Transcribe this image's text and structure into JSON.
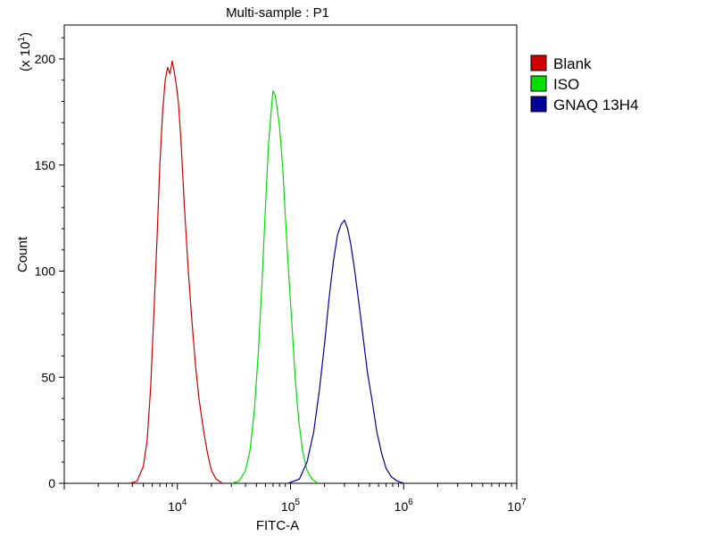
{
  "chart_data": {
    "type": "line",
    "title": "Multi-sample : P1",
    "xlabel": "FITC-A",
    "ylabel": "Count",
    "y_multiplier_label": {
      "base": "(x 10",
      "exp": "1",
      "close": ")"
    },
    "xscale": "log",
    "xlim": [
      1000,
      10000000
    ],
    "ylim": [
      0,
      216
    ],
    "x_tick_labels": [
      {
        "value": 10000,
        "base": "10",
        "exp": "4"
      },
      {
        "value": 100000,
        "base": "10",
        "exp": "5"
      },
      {
        "value": 1000000,
        "base": "10",
        "exp": "6"
      },
      {
        "value": 10000000,
        "base": "10",
        "exp": "7"
      }
    ],
    "y_ticks": [
      0,
      50,
      100,
      150,
      200
    ],
    "grid": false,
    "legend_position": "right",
    "series": [
      {
        "name": "Blank",
        "color": "#cc0000",
        "points": [
          [
            3800,
            0
          ],
          [
            4400,
            1
          ],
          [
            5000,
            8
          ],
          [
            5400,
            20
          ],
          [
            5800,
            45
          ],
          [
            6200,
            80
          ],
          [
            6600,
            115
          ],
          [
            7000,
            150
          ],
          [
            7400,
            175
          ],
          [
            7800,
            190
          ],
          [
            8200,
            196
          ],
          [
            8600,
            193
          ],
          [
            9000,
            199
          ],
          [
            9300,
            195
          ],
          [
            9700,
            189
          ],
          [
            10200,
            180
          ],
          [
            10800,
            160
          ],
          [
            11500,
            132
          ],
          [
            12500,
            100
          ],
          [
            13500,
            75
          ],
          [
            14500,
            55
          ],
          [
            15500,
            40
          ],
          [
            17000,
            25
          ],
          [
            18500,
            14
          ],
          [
            20000,
            6
          ],
          [
            22000,
            2
          ],
          [
            25000,
            0
          ]
        ]
      },
      {
        "name": "ISO",
        "color": "#00dd00",
        "points": [
          [
            30000,
            0
          ],
          [
            35000,
            1
          ],
          [
            40000,
            6
          ],
          [
            44000,
            16
          ],
          [
            48000,
            35
          ],
          [
            52000,
            62
          ],
          [
            56000,
            95
          ],
          [
            60000,
            130
          ],
          [
            64000,
            160
          ],
          [
            68000,
            178
          ],
          [
            70000,
            185
          ],
          [
            73000,
            183
          ],
          [
            76000,
            177
          ],
          [
            80000,
            168
          ],
          [
            85000,
            150
          ],
          [
            90000,
            126
          ],
          [
            96000,
            100
          ],
          [
            103000,
            75
          ],
          [
            110000,
            50
          ],
          [
            118000,
            30
          ],
          [
            128000,
            15
          ],
          [
            140000,
            6
          ],
          [
            155000,
            2
          ],
          [
            175000,
            0
          ]
        ]
      },
      {
        "name": "GNAQ  13H4",
        "color": "#000099",
        "points": [
          [
            95000,
            0
          ],
          [
            120000,
            2
          ],
          [
            140000,
            10
          ],
          [
            160000,
            24
          ],
          [
            180000,
            44
          ],
          [
            200000,
            66
          ],
          [
            220000,
            88
          ],
          [
            240000,
            105
          ],
          [
            260000,
            117
          ],
          [
            280000,
            122
          ],
          [
            300000,
            124
          ],
          [
            320000,
            120
          ],
          [
            340000,
            113
          ],
          [
            370000,
            100
          ],
          [
            400000,
            86
          ],
          [
            440000,
            68
          ],
          [
            480000,
            52
          ],
          [
            530000,
            38
          ],
          [
            580000,
            24
          ],
          [
            640000,
            14
          ],
          [
            700000,
            7
          ],
          [
            780000,
            3
          ],
          [
            880000,
            1
          ],
          [
            1000000,
            0
          ]
        ]
      }
    ]
  }
}
